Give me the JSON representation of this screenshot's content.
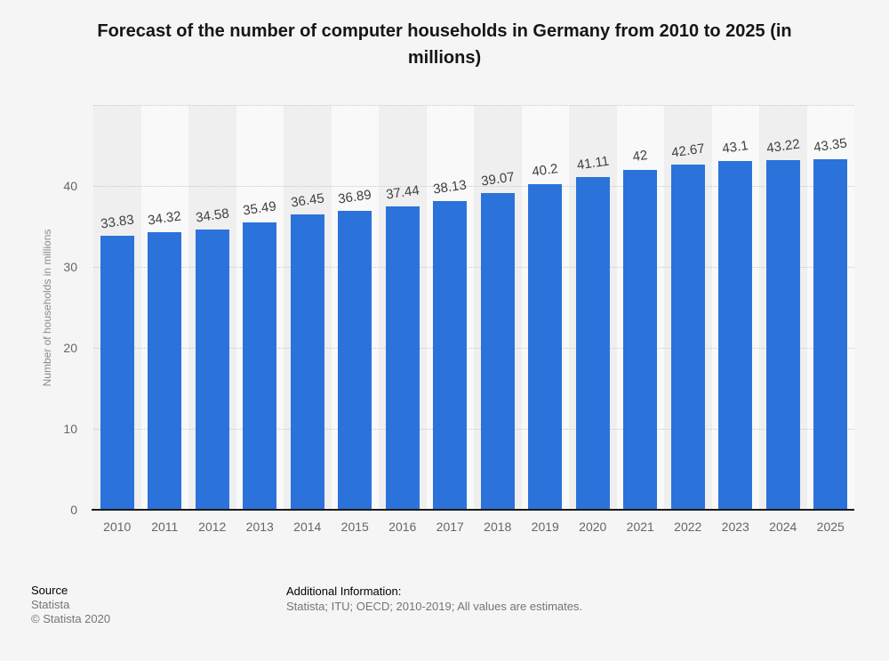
{
  "chart_data": {
    "type": "bar",
    "title": "Forecast of the number of computer households in Germany from 2010 to 2025 (in millions)",
    "categories": [
      "2010",
      "2011",
      "2012",
      "2013",
      "2014",
      "2015",
      "2016",
      "2017",
      "2018",
      "2019",
      "2020",
      "2021",
      "2022",
      "2023",
      "2024",
      "2025"
    ],
    "values": [
      33.83,
      34.32,
      34.58,
      35.49,
      36.45,
      36.89,
      37.44,
      38.13,
      39.07,
      40.2,
      41.11,
      42,
      42.67,
      43.1,
      43.22,
      43.35
    ],
    "xlabel": "",
    "ylabel": "Number of households in millions",
    "yticks": [
      0,
      10,
      20,
      30,
      40
    ],
    "ylim": [
      0,
      50
    ],
    "grid": "horizontal-dotted",
    "legend": "none",
    "bar_color": "#2b73da",
    "stripe_color_odd": "#efeff0",
    "stripe_color_even": "#f9f9fa",
    "background_color": "#f5f5f5",
    "value_label_color": "#404040",
    "axis_label_color": "#666666"
  },
  "footer": {
    "source_label": "Source",
    "source_name": "Statista",
    "copyright": "© Statista 2020",
    "additional_label": "Additional Information:",
    "additional_text": "Statista; ITU; OECD; 2010-2019; All values are estimates."
  }
}
